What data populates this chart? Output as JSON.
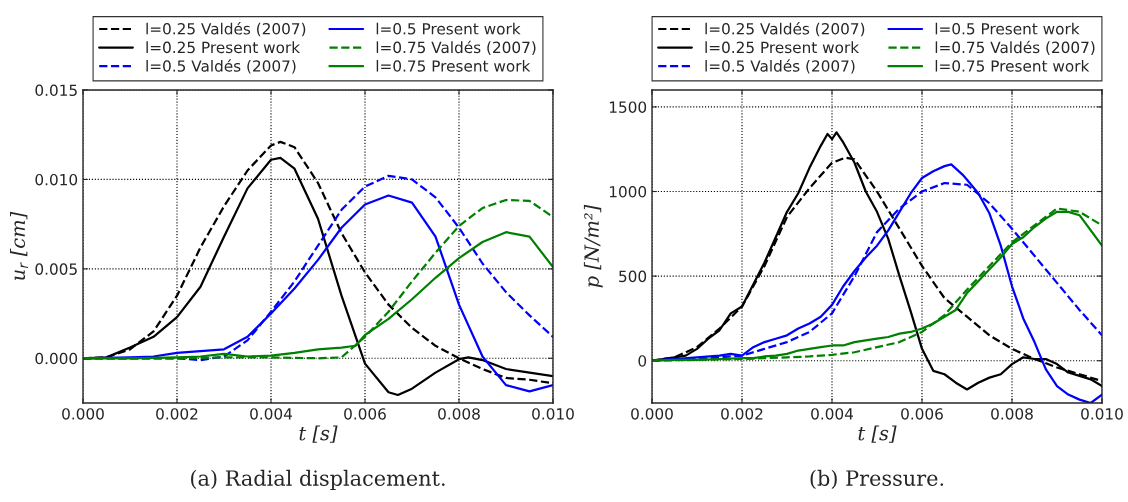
{
  "chart_data": [
    {
      "type": "line",
      "xlabel": "t [s]",
      "ylabel": "u$_{r}$ [cm]",
      "xlim": [
        0,
        0.01
      ],
      "ylim": [
        -0.0025,
        0.015
      ],
      "xticks": [
        {
          "value": 0,
          "label": "0.000"
        },
        {
          "value": 0.002,
          "label": "0.002"
        },
        {
          "value": 0.004,
          "label": "0.004"
        },
        {
          "value": 0.006,
          "label": "0.006"
        },
        {
          "value": 0.008,
          "label": "0.008"
        },
        {
          "value": 0.01,
          "label": "0.010"
        }
      ],
      "yticks": [
        {
          "value": 0,
          "label": "0.000"
        },
        {
          "value": 0.005,
          "label": "0.005"
        },
        {
          "value": 0.01,
          "label": "0.010"
        },
        {
          "value": 0.015,
          "label": "0.015"
        }
      ],
      "grid": true,
      "legend": "top",
      "annotations": [
        "(a) Radial displacement."
      ],
      "series": [
        {
          "name": "l=0.25 Valdés (2007)",
          "color": "#000000",
          "line_style": "dashed",
          "x": [
            0,
            0.0005,
            0.001,
            0.0015,
            0.002,
            0.0025,
            0.003,
            0.0035,
            0.004,
            0.0042,
            0.0045,
            0.005,
            0.0055,
            0.006,
            0.0065,
            0.007,
            0.0075,
            0.008,
            0.0085,
            0.009,
            0.0095,
            0.01
          ],
          "values": [
            0,
            5e-05,
            0.0005,
            0.0015,
            0.0035,
            0.0062,
            0.0085,
            0.0105,
            0.0119,
            0.0121,
            0.0118,
            0.0098,
            0.007,
            0.0048,
            0.003,
            0.0017,
            0.0007,
            0.0,
            -0.0006,
            -0.0011,
            -0.0012,
            -0.0014
          ]
        },
        {
          "name": "l=0.25 Present work",
          "color": "#000000",
          "line_style": "solid",
          "x": [
            0,
            0.0005,
            0.001,
            0.0015,
            0.002,
            0.0025,
            0.003,
            0.0035,
            0.004,
            0.0042,
            0.0045,
            0.005,
            0.0055,
            0.006,
            0.0065,
            0.0067,
            0.007,
            0.0075,
            0.008,
            0.0082,
            0.0085,
            0.009,
            0.0095,
            0.01
          ],
          "values": [
            0,
            5e-05,
            0.0006,
            0.0012,
            0.0023,
            0.004,
            0.0068,
            0.0095,
            0.0111,
            0.0112,
            0.0106,
            0.0078,
            0.0035,
            -0.0003,
            -0.0019,
            -0.00205,
            -0.0017,
            -0.0008,
            -5e-05,
            5e-05,
            -0.0001,
            -0.0006,
            -0.0008,
            -0.001
          ]
        },
        {
          "name": "l=0.5 Valdés (2007)",
          "color": "#0000ff",
          "line_style": "dashed",
          "x": [
            0,
            0.0005,
            0.001,
            0.0015,
            0.002,
            0.0025,
            0.003,
            0.0035,
            0.004,
            0.0045,
            0.005,
            0.0055,
            0.006,
            0.0065,
            0.007,
            0.0075,
            0.008,
            0.0085,
            0.009,
            0.0095,
            0.01
          ],
          "values": [
            0,
            0,
            0,
            0,
            0,
            -0.0001,
            0.0001,
            0.001,
            0.0026,
            0.0043,
            0.0063,
            0.0083,
            0.0096,
            0.0102,
            0.01,
            0.009,
            0.0073,
            0.0053,
            0.0037,
            0.0024,
            0.0012
          ]
        },
        {
          "name": "l=0.5 Present work",
          "color": "#0000ff",
          "line_style": "solid",
          "x": [
            0,
            0.001,
            0.0015,
            0.002,
            0.0025,
            0.003,
            0.0035,
            0.004,
            0.0045,
            0.005,
            0.0055,
            0.006,
            0.0065,
            0.007,
            0.0075,
            0.008,
            0.0085,
            0.009,
            0.0095,
            0.01
          ],
          "values": [
            0,
            5e-05,
            0.0001,
            0.0003,
            0.0004,
            0.0005,
            0.0012,
            0.0025,
            0.0039,
            0.0055,
            0.0073,
            0.0086,
            0.0091,
            0.0087,
            0.0068,
            0.003,
            0.0001,
            -0.0015,
            -0.00185,
            -0.0015
          ]
        },
        {
          "name": "l=0.75 Valdés (2007)",
          "color": "#008000",
          "line_style": "dashed",
          "x": [
            0,
            0.001,
            0.002,
            0.003,
            0.004,
            0.005,
            0.0055,
            0.006,
            0.0065,
            0.007,
            0.0075,
            0.008,
            0.0085,
            0.009,
            0.0095,
            0.01
          ],
          "values": [
            0,
            0,
            0,
            5e-05,
            5e-05,
            0,
            5e-05,
            0.0012,
            0.0026,
            0.0043,
            0.0059,
            0.0074,
            0.0084,
            0.00885,
            0.0088,
            0.0079
          ]
        },
        {
          "name": "l=0.75 Present work",
          "color": "#008000",
          "line_style": "solid",
          "x": [
            0,
            0.001,
            0.002,
            0.0025,
            0.003,
            0.0035,
            0.004,
            0.0045,
            0.005,
            0.0055,
            0.0058,
            0.006,
            0.0065,
            0.007,
            0.0075,
            0.008,
            0.0085,
            0.009,
            0.0095,
            0.01
          ],
          "values": [
            0,
            0,
            5e-05,
            0.0001,
            0.00025,
            0.0001,
            0.00015,
            0.0003,
            0.0005,
            0.0006,
            0.0007,
            0.0013,
            0.0022,
            0.0033,
            0.0045,
            0.0056,
            0.0065,
            0.00705,
            0.0068,
            0.0051
          ]
        }
      ]
    },
    {
      "type": "line",
      "xlabel": "t [s]",
      "ylabel": "p [N/m²]",
      "xlim": [
        0,
        0.01
      ],
      "ylim": [
        -250,
        1600
      ],
      "xticks": [
        {
          "value": 0,
          "label": "0.000"
        },
        {
          "value": 0.002,
          "label": "0.002"
        },
        {
          "value": 0.004,
          "label": "0.004"
        },
        {
          "value": 0.006,
          "label": "0.006"
        },
        {
          "value": 0.008,
          "label": "0.008"
        },
        {
          "value": 0.01,
          "label": "0.010"
        }
      ],
      "yticks": [
        0,
        500,
        1000,
        1500
      ],
      "grid": true,
      "legend": "top",
      "annotations": [
        "(b) Pressure."
      ],
      "series": [
        {
          "name": "l=0.25 Valdés (2007)",
          "color": "#000000",
          "line_style": "dashed",
          "x": [
            0,
            0.0005,
            0.001,
            0.0015,
            0.002,
            0.0025,
            0.003,
            0.0035,
            0.004,
            0.0043,
            0.0045,
            0.005,
            0.0055,
            0.006,
            0.0065,
            0.007,
            0.0075,
            0.008,
            0.0085,
            0.009,
            0.0095,
            0.01
          ],
          "values": [
            0,
            20,
            80,
            190,
            320,
            560,
            850,
            1020,
            1170,
            1200,
            1190,
            1000,
            780,
            560,
            370,
            260,
            150,
            70,
            10,
            -40,
            -80,
            -120
          ]
        },
        {
          "name": "l=0.25 Present work",
          "color": "#000000",
          "line_style": "solid",
          "x": [
            0,
            0.00025,
            0.0005,
            0.00075,
            0.001,
            0.00125,
            0.0015,
            0.00175,
            0.002,
            0.00225,
            0.0025,
            0.00275,
            0.003,
            0.00325,
            0.0035,
            0.00375,
            0.0039,
            0.004,
            0.0041,
            0.00425,
            0.0045,
            0.00475,
            0.005,
            0.00525,
            0.0055,
            0.00575,
            0.006,
            0.00625,
            0.0065,
            0.00675,
            0.007,
            0.00725,
            0.0075,
            0.00775,
            0.008,
            0.00825,
            0.0085,
            0.00875,
            0.009,
            0.00925,
            0.0095,
            0.00975,
            0.01
          ],
          "values": [
            0,
            10,
            20,
            30,
            70,
            130,
            180,
            280,
            320,
            450,
            580,
            730,
            880,
            990,
            1140,
            1270,
            1340,
            1310,
            1350,
            1290,
            1170,
            1000,
            880,
            720,
            500,
            290,
            70,
            -60,
            -80,
            -130,
            -170,
            -130,
            -100,
            -80,
            -20,
            20,
            10,
            10,
            -20,
            -70,
            -90,
            -110,
            -150
          ]
        },
        {
          "name": "l=0.5 Valdés (2007)",
          "color": "#0000ff",
          "line_style": "dashed",
          "x": [
            0,
            0.0005,
            0.001,
            0.0015,
            0.002,
            0.0025,
            0.003,
            0.0035,
            0.004,
            0.0045,
            0.005,
            0.0055,
            0.006,
            0.0065,
            0.007,
            0.0075,
            0.008,
            0.0085,
            0.009,
            0.0095,
            0.01
          ],
          "values": [
            0,
            10,
            10,
            20,
            30,
            70,
            110,
            170,
            280,
            500,
            760,
            900,
            1000,
            1050,
            1040,
            930,
            780,
            620,
            460,
            300,
            150
          ]
        },
        {
          "name": "l=0.5 Present work",
          "color": "#0000ff",
          "line_style": "solid",
          "x": [
            0,
            0.0005,
            0.001,
            0.0015,
            0.00175,
            0.002,
            0.00225,
            0.0025,
            0.00275,
            0.003,
            0.00325,
            0.0035,
            0.00375,
            0.004,
            0.00425,
            0.0045,
            0.00475,
            0.005,
            0.00525,
            0.0055,
            0.00575,
            0.006,
            0.00625,
            0.0065,
            0.00665,
            0.0069,
            0.007,
            0.00725,
            0.0075,
            0.00775,
            0.008,
            0.00825,
            0.0085,
            0.00875,
            0.009,
            0.00925,
            0.0095,
            0.00975,
            0.01
          ],
          "values": [
            0,
            10,
            20,
            30,
            40,
            30,
            80,
            110,
            130,
            150,
            190,
            220,
            260,
            330,
            440,
            530,
            610,
            680,
            770,
            880,
            990,
            1080,
            1120,
            1150,
            1160,
            1100,
            1070,
            990,
            870,
            680,
            440,
            250,
            110,
            -50,
            -150,
            -200,
            -230,
            -250,
            -200
          ]
        },
        {
          "name": "l=0.75 Valdés (2007)",
          "color": "#008000",
          "line_style": "dashed",
          "x": [
            0,
            0.001,
            0.002,
            0.0025,
            0.003,
            0.0035,
            0.004,
            0.0045,
            0.005,
            0.0055,
            0.006,
            0.0065,
            0.007,
            0.0075,
            0.008,
            0.0085,
            0.009,
            0.0095,
            0.01
          ],
          "values": [
            0,
            5,
            10,
            15,
            20,
            25,
            35,
            50,
            80,
            110,
            170,
            270,
            420,
            560,
            700,
            800,
            900,
            880,
            800
          ]
        },
        {
          "name": "l=0.75 Present work",
          "color": "#008000",
          "line_style": "solid",
          "x": [
            0,
            0.0005,
            0.001,
            0.0015,
            0.002,
            0.00225,
            0.0025,
            0.00275,
            0.003,
            0.00325,
            0.0035,
            0.00375,
            0.004,
            0.00425,
            0.0045,
            0.00475,
            0.005,
            0.00525,
            0.0055,
            0.00575,
            0.006,
            0.00625,
            0.0065,
            0.00675,
            0.007,
            0.00725,
            0.0075,
            0.00775,
            0.008,
            0.00825,
            0.0085,
            0.00875,
            0.009,
            0.00925,
            0.0095,
            0.00975,
            0.01
          ],
          "values": [
            0,
            5,
            5,
            10,
            15,
            15,
            25,
            30,
            40,
            60,
            70,
            80,
            90,
            90,
            110,
            120,
            130,
            140,
            160,
            170,
            190,
            220,
            260,
            300,
            400,
            470,
            540,
            610,
            690,
            730,
            790,
            840,
            880,
            880,
            860,
            770,
            680
          ]
        }
      ]
    }
  ]
}
